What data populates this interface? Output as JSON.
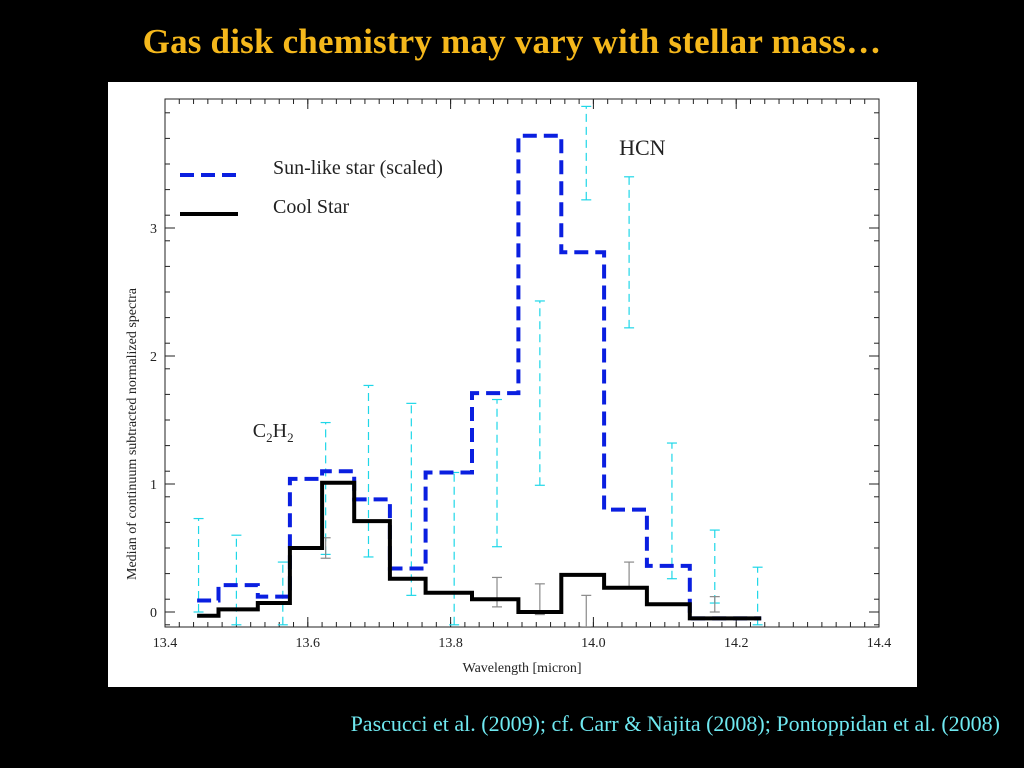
{
  "slide": {
    "title": "Gas disk chemistry may vary with stellar mass…",
    "citation": "Pascucci  et al. (2009); cf. Carr & Najita (2008); Pontoppidan et al. (2008)"
  },
  "colors": {
    "background": "#000000",
    "title": "#F5B81C",
    "citation": "#6FE8F0",
    "sun_like": "#0A1FE0",
    "cool_star": "#000000",
    "sun_like_errorbars": "#1FD7E8",
    "cool_star_errorbars": "#8A8A8A"
  },
  "chart_data": {
    "type": "line",
    "style": "step",
    "title": "",
    "xlabel": "Wavelength [micron]",
    "ylabel": "Median of continuum subtracted normalized spectra",
    "xlim": [
      13.4,
      14.4
    ],
    "ylim": [
      -0.1,
      3.95
    ],
    "xticks": [
      13.4,
      13.6,
      13.8,
      14.0,
      14.2,
      14.4
    ],
    "xtick_labels": [
      "13.4",
      "13.6",
      "13.8",
      "14.0",
      "14.2",
      "14.4"
    ],
    "yticks": [
      0,
      1,
      2,
      3
    ],
    "ytick_labels": [
      "0",
      "1",
      "2",
      "3"
    ],
    "grid": false,
    "legend_position": "top-left",
    "bin_edges": [
      13.445,
      13.475,
      13.53,
      13.575,
      13.62,
      13.665,
      13.715,
      13.765,
      13.83,
      13.895,
      13.955,
      14.015,
      14.075,
      14.135,
      14.195,
      14.235
    ],
    "series": [
      {
        "name": "Sun-like star (scaled)",
        "line_style": "dashed",
        "color": "#0A1FE0",
        "values": [
          0.09,
          0.21,
          0.12,
          1.04,
          1.1,
          0.88,
          0.34,
          1.09,
          1.71,
          3.72,
          2.81,
          0.8,
          0.36,
          -0.05,
          -0.05
        ],
        "errorbars": [
          {
            "x": 13.447,
            "lo": 0.0,
            "hi": 0.73
          },
          {
            "x": 13.5,
            "lo": -0.1,
            "hi": 0.6
          },
          {
            "x": 13.565,
            "lo": -0.1,
            "hi": 0.39
          },
          {
            "x": 13.625,
            "lo": 0.45,
            "hi": 1.48
          },
          {
            "x": 13.685,
            "lo": 0.43,
            "hi": 1.77
          },
          {
            "x": 13.745,
            "lo": 0.13,
            "hi": 1.63
          },
          {
            "x": 13.805,
            "lo": -0.1,
            "hi": 1.09
          },
          {
            "x": 13.865,
            "lo": 0.51,
            "hi": 1.66
          },
          {
            "x": 13.925,
            "lo": 0.99,
            "hi": 2.43
          },
          {
            "x": 13.99,
            "lo": 3.22,
            "hi": 3.95
          },
          {
            "x": 14.05,
            "lo": 2.22,
            "hi": 3.4
          },
          {
            "x": 14.11,
            "lo": 0.26,
            "hi": 1.32
          },
          {
            "x": 14.17,
            "lo": 0.07,
            "hi": 0.64
          },
          {
            "x": 14.23,
            "lo": -0.1,
            "hi": 0.35
          }
        ]
      },
      {
        "name": "Cool Star",
        "line_style": "solid",
        "color": "#000000",
        "values": [
          -0.03,
          0.02,
          0.07,
          0.5,
          1.01,
          0.71,
          0.26,
          0.15,
          0.1,
          0.0,
          0.29,
          0.19,
          0.06,
          -0.05,
          -0.05
        ],
        "errorbars": [
          {
            "x": 13.625,
            "lo": 0.42,
            "hi": 0.58
          },
          {
            "x": 13.865,
            "lo": 0.04,
            "hi": 0.27
          },
          {
            "x": 13.925,
            "lo": -0.02,
            "hi": 0.22
          },
          {
            "x": 13.99,
            "lo": -0.12,
            "hi": 0.13
          },
          {
            "x": 14.05,
            "lo": 0.19,
            "hi": 0.39
          },
          {
            "x": 14.17,
            "lo": 0.0,
            "hi": 0.12
          }
        ]
      }
    ],
    "annotations": [
      {
        "text": "HCN",
        "x": 14.05,
        "y": 3.6
      },
      {
        "text_parts": [
          "C",
          "2",
          "H",
          "2"
        ],
        "x": 13.565,
        "y": 1.4
      }
    ]
  }
}
